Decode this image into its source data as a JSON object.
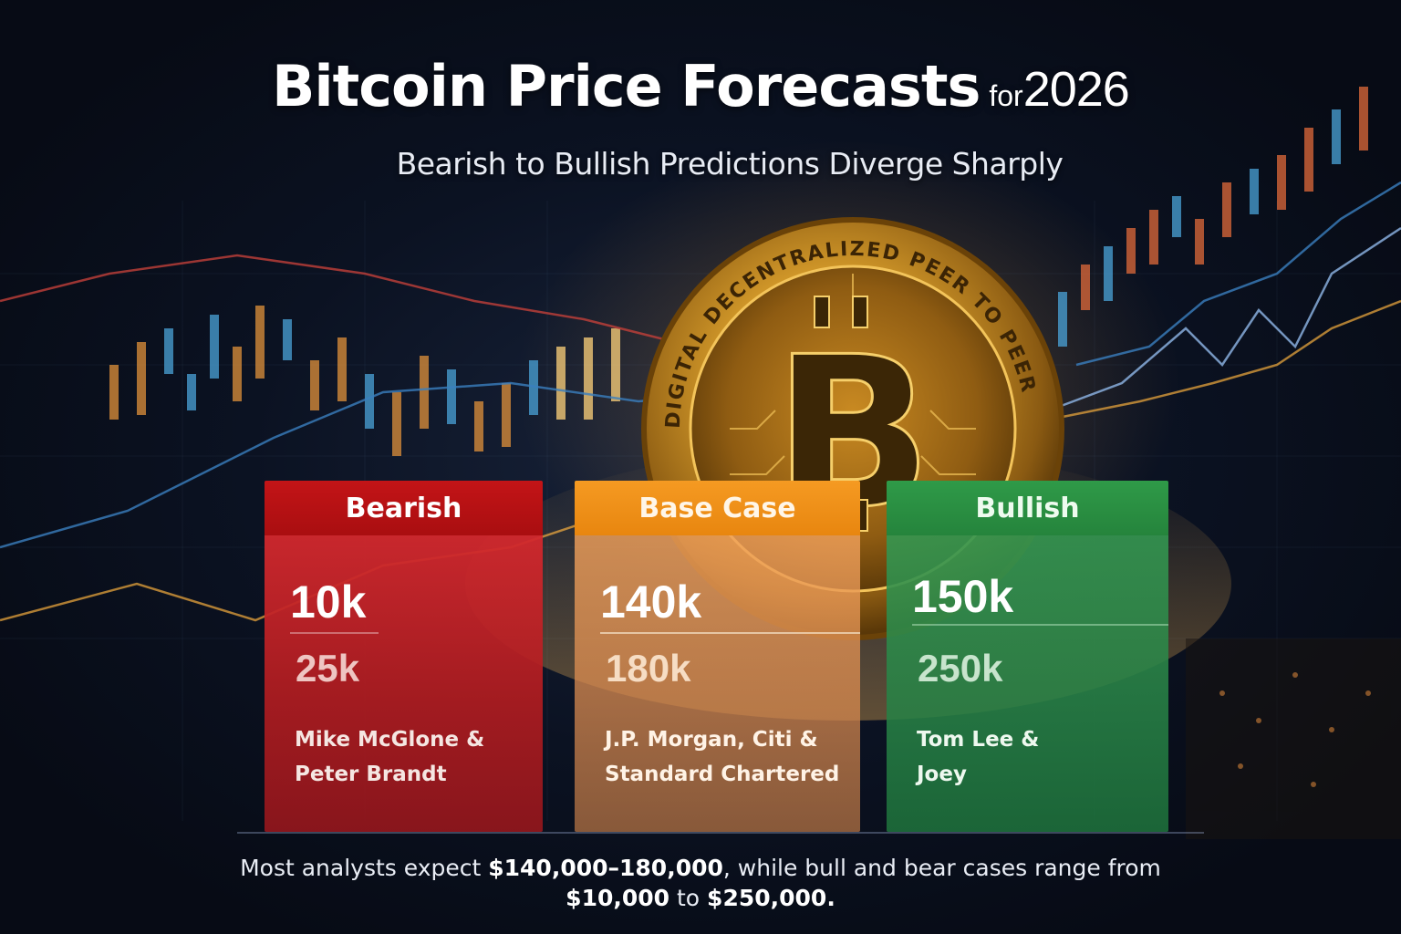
{
  "header": {
    "title_main": "Bitcoin Price Forecasts",
    "title_for": "for",
    "title_year": "2026",
    "subtitle": "Bearish to Bullish Predictions Diverge Sharply"
  },
  "coin": {
    "rim_text": "DIGITAL DECENTRALIZED PEER TO PEER"
  },
  "cards": [
    {
      "heading": "Bearish",
      "low": "10k",
      "high": "25k",
      "analysts_line1": "Mike McGlone &",
      "analysts_line2": "Peter Brandt",
      "color": "#c31417"
    },
    {
      "heading": "Base Case",
      "low": "140k",
      "high": "180k",
      "analysts_line1": "J.P. Morgan, Citi &",
      "analysts_line2": "Standard Chartered",
      "color": "#f59a22"
    },
    {
      "heading": "Bullish",
      "low": "150k",
      "high": "250k",
      "analysts_line1": "Tom Lee &",
      "analysts_line2": "Joey",
      "color": "#2f9a48"
    }
  ],
  "footer": {
    "part1": "Most analysts expect ",
    "base_range": "$140,000–180,000",
    "part2": ", while bull and bear cases  range from",
    "low_bound": "$10,000",
    "part3": " to ",
    "high_bound": "$250,000",
    "part4": "."
  }
}
